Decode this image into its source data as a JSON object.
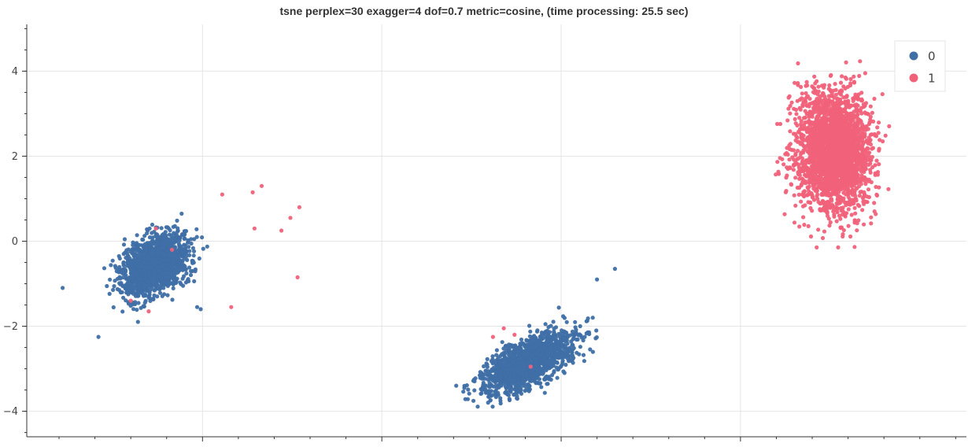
{
  "chart_data": {
    "type": "scatter",
    "title": "tsne perplex=30 exagger=4 dof=0.7 metric=cosine, (time processing: 25.5 sec)",
    "xlabel": "",
    "ylabel": "",
    "xlim": [
      -7.9,
      18.3
    ],
    "ylim": [
      -4.6,
      5.1
    ],
    "x_gridlines": [
      -3,
      2,
      7,
      12
    ],
    "y_ticks": [
      -4,
      -2,
      0,
      2,
      4
    ],
    "y_tick_labels": [
      "−4",
      "−2",
      "0",
      "2",
      "4"
    ],
    "grid": true,
    "legend": {
      "position": "top-right",
      "entries": [
        "0",
        "1"
      ]
    },
    "series": [
      {
        "name": "0",
        "color": "#3f6fa5",
        "clusters": [
          {
            "center": [
              -4.3,
              -0.55
            ],
            "spread": [
              1.55,
              0.95
            ],
            "rotation_deg": 26,
            "points": 1500
          },
          {
            "center": [
              6.1,
              -2.85
            ],
            "spread": [
              2.15,
              0.8
            ],
            "rotation_deg": 24,
            "points": 1500
          }
        ],
        "sample_points": [
          [
            -3.15,
            -1.55
          ],
          [
            -3.05,
            -1.6
          ],
          [
            -6.9,
            -1.1
          ],
          [
            -5.9,
            -2.25
          ],
          [
            4.3,
            -3.45
          ],
          [
            8.5,
            -0.65
          ],
          [
            8.0,
            -0.9
          ]
        ]
      },
      {
        "name": "1",
        "color": "#f0627a",
        "clusters": [
          {
            "center": [
              14.6,
              2.1
            ],
            "spread": [
              1.55,
              2.15
            ],
            "rotation_deg": 0,
            "points": 2600
          }
        ],
        "sample_points": [
          [
            -1.6,
            1.15
          ],
          [
            -1.35,
            1.3
          ],
          [
            -0.55,
            0.55
          ],
          [
            -0.35,
            -0.85
          ],
          [
            -1.55,
            0.3
          ],
          [
            -4.3,
            0.3
          ],
          [
            -5.0,
            -1.4
          ],
          [
            -3.85,
            -0.2
          ],
          [
            -4.5,
            -1.65
          ],
          [
            -2.2,
            -1.55
          ],
          [
            -0.8,
            0.25
          ],
          [
            -2.45,
            1.1
          ],
          [
            -0.3,
            0.8
          ],
          [
            5.1,
            -2.25
          ],
          [
            5.4,
            -2.05
          ],
          [
            5.7,
            -2.2
          ],
          [
            6.15,
            -2.95
          ]
        ]
      }
    ]
  }
}
